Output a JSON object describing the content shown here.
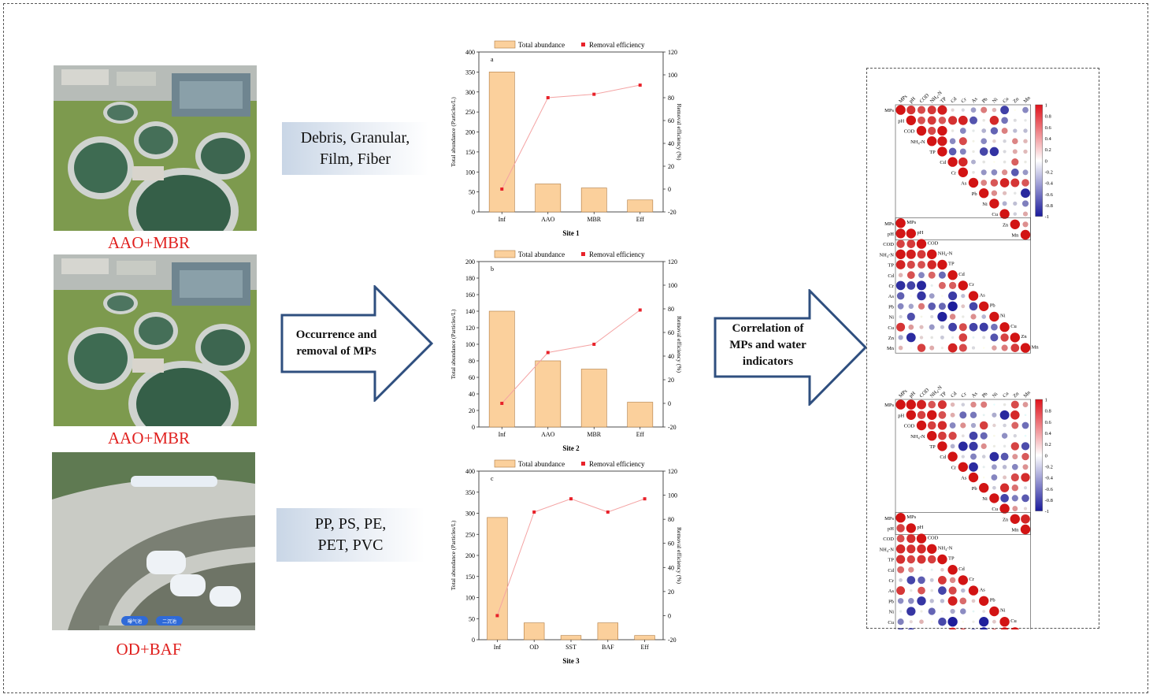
{
  "plants": [
    {
      "label": "AAO+MBR"
    },
    {
      "label": "AAO+MBR"
    },
    {
      "label": "OD+BAF",
      "sign1": "曝气池",
      "sign2": "二沉池"
    }
  ],
  "tag_boxes": [
    {
      "lines": [
        "Debris, Granular,",
        "Film, Fiber"
      ]
    },
    {
      "lines": [
        "PP, PS, PE,",
        "PET, PVC"
      ]
    }
  ],
  "arrows": [
    {
      "lines": [
        "Occurrence and",
        "removal of MPs"
      ]
    },
    {
      "lines": [
        "Correlation of",
        "MPs and water",
        "indicators"
      ]
    }
  ],
  "legend": {
    "bar": "Total abundance",
    "line": "Removal efficiency"
  },
  "colors": {
    "bar": "#fbd09c",
    "bar_stroke": "#b07a40",
    "line": "#f4a3a3",
    "point": "#e8222a",
    "label_red": "#e0201e",
    "arrow_stroke": "#2f4f7f"
  },
  "chart_data": [
    {
      "type": "bar+line",
      "panel": "a",
      "title": "Site 1",
      "categories": [
        "Inf",
        "AAO",
        "MBR",
        "Eff"
      ],
      "series": [
        {
          "name": "Total abundance",
          "values": [
            350,
            70,
            60,
            30
          ]
        },
        {
          "name": "Removal efficiency",
          "values": [
            0,
            80,
            83,
            91
          ]
        }
      ],
      "ylabel": "Total abundance (Particles/L)",
      "y2label": "Removal efficiency (%)",
      "ylim": [
        0,
        400
      ],
      "yticks": [
        0,
        50,
        100,
        150,
        200,
        250,
        300,
        350,
        400
      ],
      "y2lim": [
        -20,
        120
      ],
      "y2ticks": [
        -20,
        0,
        20,
        40,
        60,
        80,
        100,
        120
      ]
    },
    {
      "type": "bar+line",
      "panel": "b",
      "title": "Site 2",
      "categories": [
        "Inf",
        "AAO",
        "MBR",
        "Eff"
      ],
      "series": [
        {
          "name": "Total abundance",
          "values": [
            140,
            80,
            70,
            30
          ]
        },
        {
          "name": "Removal efficiency",
          "values": [
            0,
            43,
            50,
            79
          ]
        }
      ],
      "ylabel": "Total abundance (Particles/L)",
      "y2label": "Removal efficiency (%)",
      "ylim": [
        0,
        200
      ],
      "yticks": [
        0,
        20,
        40,
        60,
        80,
        100,
        120,
        140,
        160,
        180,
        200
      ],
      "y2lim": [
        -20,
        120
      ],
      "y2ticks": [
        -20,
        0,
        20,
        40,
        60,
        80,
        100,
        120
      ]
    },
    {
      "type": "bar+line",
      "panel": "c",
      "title": "Site 3",
      "categories": [
        "Inf",
        "OD",
        "SST",
        "BAF",
        "Eff"
      ],
      "series": [
        {
          "name": "Total abundance",
          "values": [
            290,
            40,
            10,
            40,
            10
          ]
        },
        {
          "name": "Removal efficiency",
          "values": [
            0,
            86,
            97,
            86,
            97
          ]
        }
      ],
      "ylabel": "Total abundance (Particles/L)",
      "y2label": "Removal efficiency (%)",
      "ylim": [
        0,
        400
      ],
      "yticks": [
        0,
        50,
        100,
        150,
        200,
        250,
        300,
        350,
        400
      ],
      "y2lim": [
        -20,
        120
      ],
      "y2ticks": [
        -20,
        0,
        20,
        40,
        60,
        80,
        100,
        120
      ]
    },
    {
      "type": "heatmap",
      "name": "correlation-site-1-2",
      "variables": [
        "MPs",
        "pH",
        "COD",
        "NH₄-N",
        "TP",
        "Cd",
        "Cr",
        "As",
        "Pb",
        "Ni",
        "Cu",
        "Zn",
        "Mn"
      ],
      "colorbar_ticks": [
        "1",
        "0.8",
        "0.6",
        "0.4",
        "0.2",
        "0",
        "-0.2",
        "-0.4",
        "-0.6",
        "-0.8",
        "-1"
      ]
    },
    {
      "type": "heatmap",
      "name": "correlation-site-3",
      "variables": [
        "MPs",
        "pH",
        "COD",
        "NH₄-N",
        "TP",
        "Cd",
        "Cr",
        "As",
        "Pb",
        "Ni",
        "Cu",
        "Zn",
        "Mn"
      ],
      "colorbar_ticks": [
        "1",
        "0.8",
        "0.6",
        "0.4",
        "0.2",
        "0",
        "-0.2",
        "-0.4",
        "-0.6",
        "-0.8",
        "-1"
      ]
    }
  ]
}
